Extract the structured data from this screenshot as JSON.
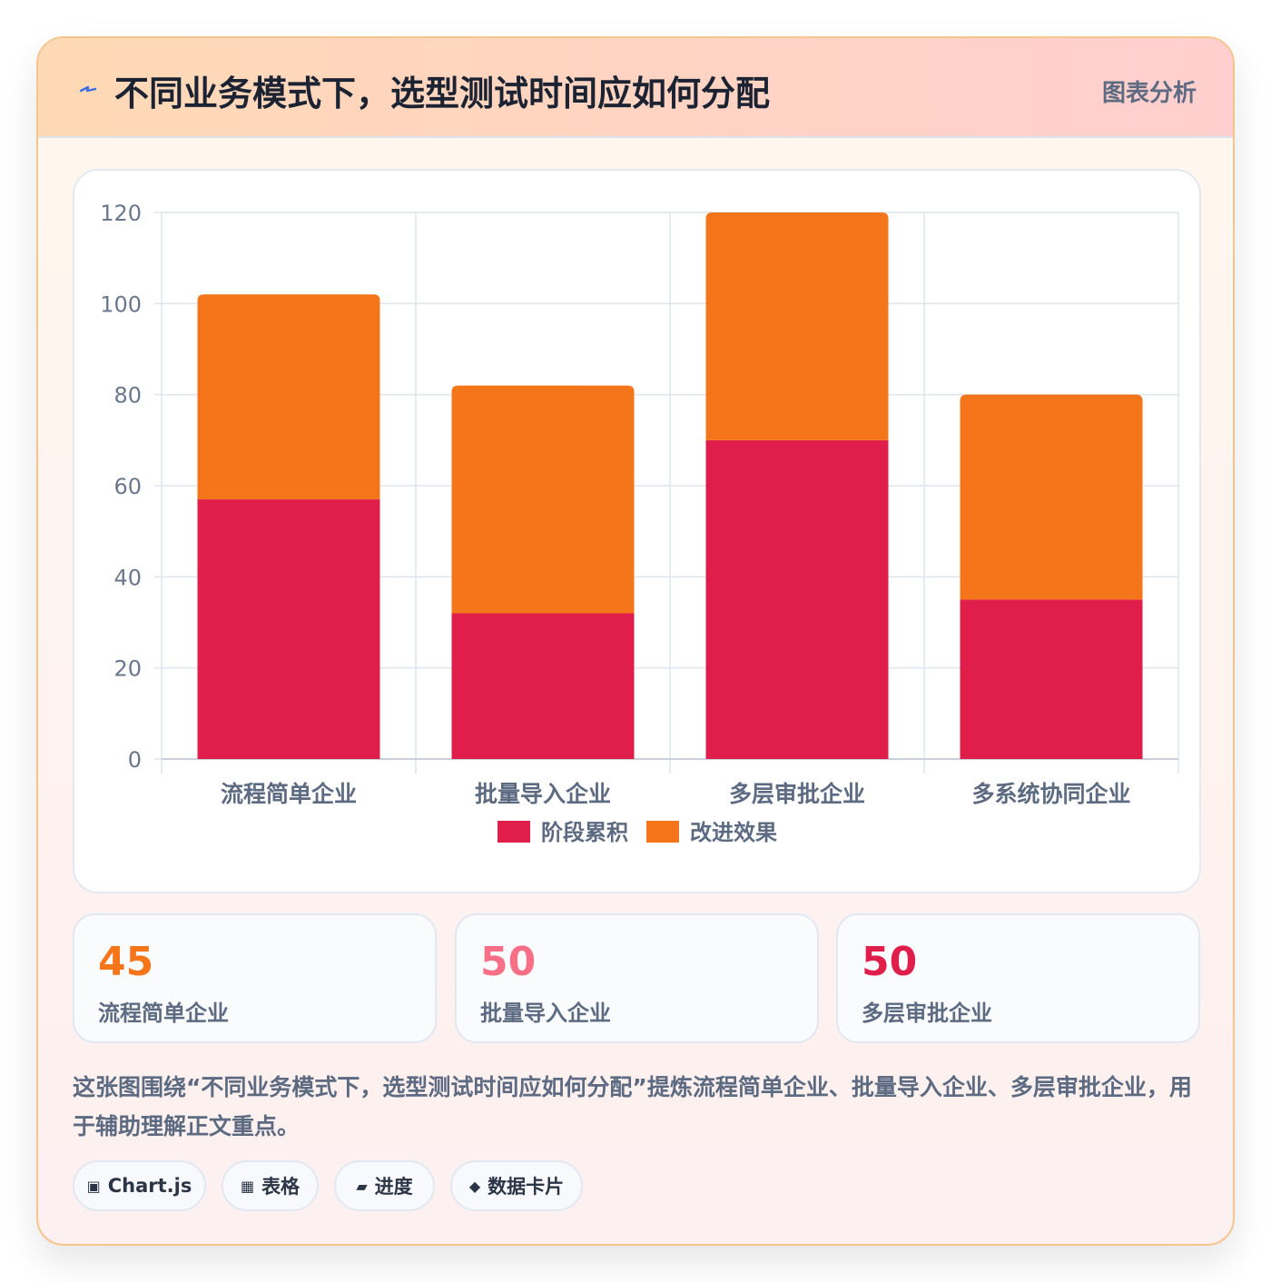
{
  "header": {
    "title": "不同业务模式下，选型测试时间应如何分配",
    "tag": "图表分析"
  },
  "chart_data": {
    "type": "bar",
    "stacked": true,
    "categories": [
      "流程简单企业",
      "批量导入企业",
      "多层审批企业",
      "多系统协同企业"
    ],
    "series": [
      {
        "name": "阶段累积",
        "values": [
          57,
          32,
          70,
          35
        ],
        "color": "#e01e4b"
      },
      {
        "name": "改进效果",
        "values": [
          45,
          50,
          50,
          45
        ],
        "color": "#f5761a"
      }
    ],
    "ylim": [
      0,
      120
    ],
    "yticks": [
      0,
      20,
      40,
      60,
      80,
      100,
      120
    ],
    "grid": true,
    "legend": "bottom"
  },
  "stats": [
    {
      "value": "45",
      "label": "流程简单企业",
      "color": "#f5761a"
    },
    {
      "value": "50",
      "label": "批量导入企业",
      "color": "#f76f86"
    },
    {
      "value": "50",
      "label": "多层审批企业",
      "color": "#e01e4b"
    }
  ],
  "description": "这张图围绕“不同业务模式下，选型测试时间应如何分配”提炼流程简单企业、批量导入企业、多层审批企业，用于辅助理解正文重点。",
  "pills": [
    {
      "icon": "▣",
      "label": "Chart.js"
    },
    {
      "icon": "▦",
      "label": "表格"
    },
    {
      "icon": "▰",
      "label": "进度"
    },
    {
      "icon": "◆",
      "label": "数据卡片"
    }
  ]
}
